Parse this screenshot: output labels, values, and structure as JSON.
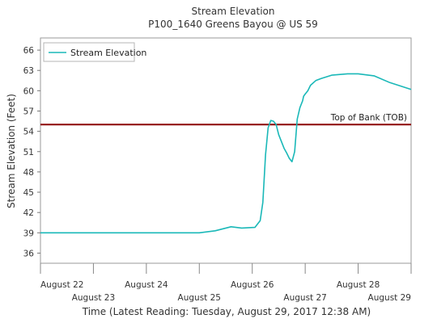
{
  "chart_data": {
    "type": "line",
    "title": "Stream Elevation",
    "subtitle": "P100_1640 Greens Bayou @ US 59",
    "xlabel": "Time (Latest Reading: Tuesday, August 29, 2017 12:38 AM)",
    "ylabel": "Stream Elevation (Feet)",
    "ylim": [
      34.5,
      67.8
    ],
    "xlim": [
      22,
      29
    ],
    "yticks": [
      36,
      39,
      42,
      45,
      48,
      51,
      54,
      57,
      60,
      63,
      66
    ],
    "xticks": [
      {
        "value": 22,
        "label": "August 22"
      },
      {
        "value": 23,
        "label": "August 23"
      },
      {
        "value": 24,
        "label": "August 24"
      },
      {
        "value": 25,
        "label": "August 25"
      },
      {
        "value": 26,
        "label": "August 26"
      },
      {
        "value": 27,
        "label": "August 27"
      },
      {
        "value": 28,
        "label": "August 28"
      },
      {
        "value": 29,
        "label": "August 29"
      }
    ],
    "grid": false,
    "legend_position": "top-left",
    "series": [
      {
        "name": "Stream Elevation",
        "color": "#1ab8b8",
        "x": [
          22.0,
          23.0,
          24.0,
          25.0,
          25.3,
          25.6,
          25.8,
          26.05,
          26.15,
          26.2,
          26.25,
          26.3,
          26.35,
          26.4,
          26.45,
          26.5,
          26.55,
          26.6,
          26.65,
          26.7,
          26.75,
          26.8,
          26.85,
          26.9,
          26.95,
          26.97,
          27.0,
          27.05,
          27.1,
          27.2,
          27.3,
          27.5,
          27.8,
          28.0,
          28.3,
          28.6,
          29.0
        ],
        "values": [
          39.0,
          39.0,
          39.0,
          39.0,
          39.3,
          39.9,
          39.7,
          39.8,
          40.8,
          43.5,
          50.5,
          54.5,
          55.6,
          55.5,
          55.0,
          53.5,
          52.5,
          51.5,
          50.8,
          50.0,
          49.5,
          51.0,
          55.8,
          57.5,
          58.5,
          59.2,
          59.5,
          60.0,
          60.8,
          61.5,
          61.8,
          62.3,
          62.5,
          62.5,
          62.2,
          61.2,
          60.2
        ]
      }
    ],
    "reference_lines": [
      {
        "value": 55.0,
        "label": "Top of Bank (TOB)",
        "color": "#8b0000"
      }
    ]
  }
}
